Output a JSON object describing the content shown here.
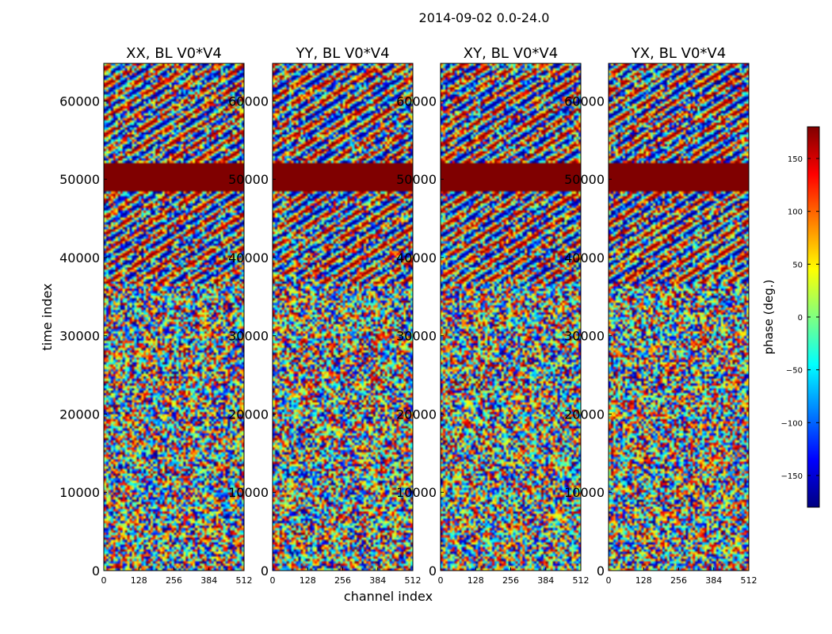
{
  "figure_title": "2014-09-02 0.0-24.0",
  "x_axis_label": "channel index",
  "y_axis_label": "time index",
  "colorbar": {
    "label": "phase (deg.)",
    "range": [
      -180,
      180
    ],
    "ticks": [
      "150",
      "100",
      "50",
      "0",
      "−50",
      "−100",
      "−150"
    ],
    "colormap": "jet"
  },
  "chart_data": [
    {
      "type": "heatmap",
      "title": "XX, BL V0*V4",
      "xlim": [
        0,
        512
      ],
      "ylim": [
        0,
        64800
      ],
      "x_ticks": [
        "0",
        "128",
        "256",
        "384",
        "512"
      ],
      "y_ticks": [
        "0",
        "10000",
        "20000",
        "30000",
        "40000",
        "50000",
        "60000"
      ],
      "value": "phase (deg.)",
      "regions": [
        {
          "time_range": [
            48500,
            52200
          ],
          "phase": 180,
          "pattern": "solid"
        },
        {
          "time_range": [
            36500,
            48500
          ],
          "pattern": "fringes"
        },
        {
          "time_range": [
            52200,
            64800
          ],
          "pattern": "fringes"
        },
        {
          "time_range": [
            0,
            36500
          ],
          "pattern": "noise"
        }
      ]
    },
    {
      "type": "heatmap",
      "title": "YY, BL V0*V4",
      "xlim": [
        0,
        512
      ],
      "ylim": [
        0,
        64800
      ],
      "x_ticks": [
        "0",
        "128",
        "256",
        "384",
        "512"
      ],
      "y_ticks": [
        "0",
        "10000",
        "20000",
        "30000",
        "40000",
        "50000",
        "60000"
      ],
      "value": "phase (deg.)",
      "regions": [
        {
          "time_range": [
            48500,
            52200
          ],
          "phase": 180,
          "pattern": "solid"
        },
        {
          "time_range": [
            36500,
            48500
          ],
          "pattern": "fringes"
        },
        {
          "time_range": [
            52200,
            64800
          ],
          "pattern": "fringes"
        },
        {
          "time_range": [
            0,
            36500
          ],
          "pattern": "noise"
        }
      ]
    },
    {
      "type": "heatmap",
      "title": "XY, BL V0*V4",
      "xlim": [
        0,
        512
      ],
      "ylim": [
        0,
        64800
      ],
      "x_ticks": [
        "0",
        "128",
        "256",
        "384",
        "512"
      ],
      "y_ticks": [
        "0",
        "10000",
        "20000",
        "30000",
        "40000",
        "50000",
        "60000"
      ],
      "value": "phase (deg.)",
      "regions": [
        {
          "time_range": [
            48500,
            52200
          ],
          "phase": 180,
          "pattern": "solid"
        },
        {
          "time_range": [
            36500,
            48500
          ],
          "pattern": "fringes"
        },
        {
          "time_range": [
            52200,
            64800
          ],
          "pattern": "fringes"
        },
        {
          "time_range": [
            0,
            36500
          ],
          "pattern": "noise"
        }
      ]
    },
    {
      "type": "heatmap",
      "title": "YX, BL V0*V4",
      "xlim": [
        0,
        512
      ],
      "ylim": [
        0,
        64800
      ],
      "x_ticks": [
        "0",
        "128",
        "256",
        "384",
        "512"
      ],
      "y_ticks": [
        "0",
        "10000",
        "20000",
        "30000",
        "40000",
        "50000",
        "60000"
      ],
      "value": "phase (deg.)",
      "regions": [
        {
          "time_range": [
            48500,
            52200
          ],
          "phase": 180,
          "pattern": "solid"
        },
        {
          "time_range": [
            36500,
            48500
          ],
          "pattern": "fringes"
        },
        {
          "time_range": [
            52200,
            64800
          ],
          "pattern": "fringes"
        },
        {
          "time_range": [
            0,
            36500
          ],
          "pattern": "noise"
        }
      ]
    }
  ]
}
